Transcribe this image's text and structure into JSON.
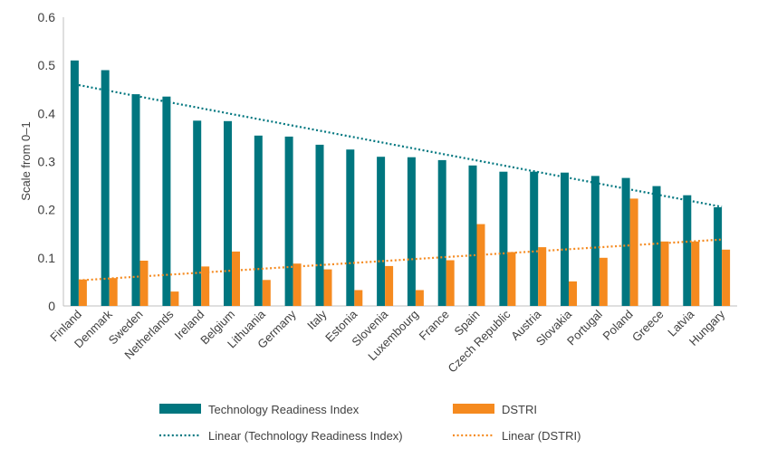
{
  "chart_data": {
    "type": "bar",
    "title": "",
    "xlabel": "",
    "ylabel": "Scale from 0–1",
    "ylim": [
      0,
      0.6
    ],
    "yticks": [
      "0",
      "0.1",
      "0.2",
      "0.3",
      "0.4",
      "0.5",
      "0.6"
    ],
    "grid": false,
    "legend_position": "bottom",
    "categories": [
      "Finland",
      "Denmark",
      "Sweden",
      "Netherlands",
      "Ireland",
      "Belgium",
      "Lithuania",
      "Germany",
      "Italy",
      "Estonia",
      "Slovenia",
      "Luxembourg",
      "France",
      "Spain",
      "Czech Republic",
      "Austria",
      "Slovakia",
      "Portugal",
      "Poland",
      "Greece",
      "Latvia",
      "Hungary"
    ],
    "series": [
      {
        "name": "Technology Readiness Index",
        "color": "#00767f",
        "values": [
          0.51,
          0.49,
          0.44,
          0.435,
          0.385,
          0.384,
          0.354,
          0.352,
          0.335,
          0.325,
          0.31,
          0.309,
          0.303,
          0.292,
          0.279,
          0.279,
          0.277,
          0.27,
          0.266,
          0.249,
          0.23,
          0.205
        ]
      },
      {
        "name": "DSTRI",
        "color": "#f58a1f",
        "values": [
          0.055,
          0.058,
          0.094,
          0.03,
          0.082,
          0.113,
          0.054,
          0.088,
          0.076,
          0.033,
          0.083,
          0.033,
          0.095,
          0.17,
          0.112,
          0.122,
          0.051,
          0.1,
          0.223,
          0.134,
          0.134,
          0.117
        ]
      }
    ],
    "trendlines": [
      {
        "name": "Linear (Technology Readiness Index)",
        "color": "#00767f",
        "style": "dotted",
        "start": 0.459,
        "end": 0.206
      },
      {
        "name": "Linear (DSTRI)",
        "color": "#f58a1f",
        "style": "dotted",
        "start": 0.053,
        "end": 0.138
      }
    ]
  }
}
